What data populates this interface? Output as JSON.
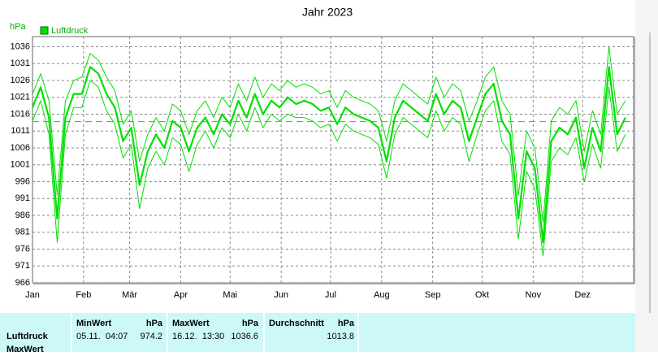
{
  "chart_data": {
    "type": "line",
    "title": "Jahr 2023",
    "y_label": "hPa",
    "x": [
      1,
      6,
      11,
      16,
      21,
      26,
      31,
      36,
      41,
      46,
      51,
      56,
      61,
      66,
      71,
      76,
      81,
      86,
      91,
      96,
      101,
      106,
      111,
      116,
      121,
      126,
      131,
      136,
      141,
      146,
      151,
      156,
      161,
      166,
      171,
      176,
      181,
      186,
      191,
      196,
      201,
      206,
      211,
      216,
      221,
      226,
      231,
      236,
      241,
      246,
      251,
      256,
      261,
      266,
      271,
      276,
      281,
      286,
      291,
      296,
      301,
      306,
      311,
      316,
      321,
      326,
      331,
      336,
      341,
      346,
      351,
      356,
      361
    ],
    "xlim": [
      1,
      366
    ],
    "xticks": [
      {
        "value": 1,
        "label": "Jan"
      },
      {
        "value": 32,
        "label": "Feb"
      },
      {
        "value": 60,
        "label": "Mär"
      },
      {
        "value": 91,
        "label": "Apr"
      },
      {
        "value": 121,
        "label": "Mai"
      },
      {
        "value": 152,
        "label": "Jun"
      },
      {
        "value": 182,
        "label": "Jul"
      },
      {
        "value": 213,
        "label": "Aug"
      },
      {
        "value": 244,
        "label": "Sep"
      },
      {
        "value": 274,
        "label": "Okt"
      },
      {
        "value": 305,
        "label": "Nov"
      },
      {
        "value": 335,
        "label": "Dez"
      }
    ],
    "ylim": [
      966,
      1039
    ],
    "yticks": [
      966,
      971,
      976,
      981,
      986,
      991,
      996,
      1001,
      1006,
      1011,
      1016,
      1021,
      1026,
      1031,
      1036
    ],
    "grid": true,
    "series": [
      {
        "name": "Luftdruck",
        "color": "#00e000",
        "values": [
          1018,
          1024,
          1015,
          985,
          1015,
          1022,
          1022,
          1030,
          1028,
          1022,
          1018,
          1008,
          1012,
          995,
          1005,
          1010,
          1006,
          1014,
          1012,
          1005,
          1012,
          1015,
          1010,
          1016,
          1013,
          1020,
          1015,
          1022,
          1016,
          1020,
          1018,
          1021,
          1019,
          1020,
          1019,
          1017,
          1018,
          1013,
          1018,
          1016,
          1015,
          1014,
          1012,
          1002,
          1015,
          1020,
          1018,
          1016,
          1014,
          1022,
          1016,
          1020,
          1018,
          1008,
          1015,
          1022,
          1025,
          1014,
          1010,
          985,
          1005,
          1000,
          978,
          1008,
          1012,
          1010,
          1015,
          1000,
          1012,
          1005,
          1030,
          1010,
          1015
        ]
      },
      {
        "color": "#00e000",
        "values": [
          1014,
          1020,
          1010,
          978,
          1010,
          1018,
          1018,
          1026,
          1024,
          1017,
          1013,
          1003,
          1007,
          988,
          1000,
          1005,
          1001,
          1009,
          1007,
          999,
          1007,
          1011,
          1006,
          1012,
          1009,
          1016,
          1011,
          1018,
          1012,
          1016,
          1014,
          1016,
          1015,
          1015,
          1014,
          1012,
          1013,
          1008,
          1013,
          1011,
          1010,
          1009,
          1007,
          997,
          1010,
          1015,
          1013,
          1011,
          1009,
          1017,
          1011,
          1015,
          1013,
          1002,
          1010,
          1017,
          1020,
          1008,
          1004,
          979,
          999,
          994,
          974,
          1002,
          1006,
          1004,
          1009,
          996,
          1007,
          1000,
          1024,
          1005,
          1010
        ]
      },
      {
        "color": "#00e000",
        "values": [
          1022,
          1028,
          1020,
          992,
          1020,
          1026,
          1027,
          1034,
          1032,
          1027,
          1023,
          1013,
          1017,
          1002,
          1010,
          1015,
          1011,
          1019,
          1017,
          1010,
          1017,
          1020,
          1015,
          1021,
          1018,
          1025,
          1020,
          1027,
          1021,
          1025,
          1023,
          1026,
          1024,
          1025,
          1024,
          1022,
          1023,
          1018,
          1023,
          1021,
          1020,
          1019,
          1017,
          1008,
          1020,
          1025,
          1023,
          1021,
          1019,
          1027,
          1021,
          1025,
          1023,
          1014,
          1020,
          1027,
          1030,
          1020,
          1016,
          992,
          1011,
          1006,
          984,
          1014,
          1018,
          1016,
          1020,
          1005,
          1017,
          1010,
          1036,
          1016,
          1020
        ]
      }
    ]
  },
  "table": {
    "columns": [
      {
        "label": "MinWert",
        "unit": "hPa"
      },
      {
        "label": "MaxWert",
        "unit": "hPa"
      },
      {
        "label": "Durchschnitt",
        "unit": "hPa"
      }
    ],
    "row_labels": [
      "Luftdruck",
      "MaxWert"
    ],
    "cells": [
      {
        "time": "05.11.  04:07",
        "value": 974.2
      },
      {
        "time": "16.12.  13:30",
        "value": 1036.6
      },
      {
        "value": 1013.8
      }
    ]
  }
}
